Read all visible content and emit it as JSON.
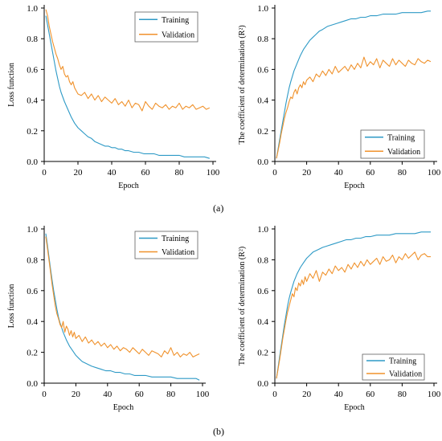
{
  "panel_labels": [
    "(a)",
    "(b)"
  ],
  "colors": {
    "training": "#2E9AC6",
    "validation": "#F0922C",
    "axis": "#000000",
    "legend_border": "#5f5f5f"
  },
  "chart_data": [
    {
      "type": "line",
      "panel": "(a)",
      "xlabel": "Epoch",
      "ylabel": "Loss function",
      "xlim": [
        0,
        100
      ],
      "ylim": [
        0,
        1
      ],
      "xticks": [
        "0",
        "20",
        "40",
        "60",
        "80",
        "100"
      ],
      "yticks": [
        "0.0",
        "0.2",
        "0.4",
        "0.6",
        "0.8",
        "1.0"
      ],
      "grid": false,
      "legend_position": "top-right",
      "series": [
        {
          "name": "Training",
          "color": "#2E9AC6",
          "x": [
            1,
            2,
            3,
            4,
            5,
            6,
            7,
            8,
            9,
            10,
            12,
            14,
            16,
            18,
            20,
            22,
            24,
            26,
            28,
            30,
            32,
            34,
            36,
            38,
            40,
            42,
            44,
            46,
            48,
            50,
            53,
            56,
            59,
            62,
            65,
            68,
            71,
            74,
            77,
            80,
            83,
            86,
            89,
            92,
            95,
            98
          ],
          "y": [
            0.95,
            0.89,
            0.83,
            0.77,
            0.71,
            0.65,
            0.59,
            0.54,
            0.49,
            0.45,
            0.39,
            0.34,
            0.29,
            0.25,
            0.22,
            0.2,
            0.18,
            0.16,
            0.15,
            0.13,
            0.12,
            0.11,
            0.1,
            0.1,
            0.09,
            0.09,
            0.08,
            0.08,
            0.07,
            0.07,
            0.06,
            0.06,
            0.05,
            0.05,
            0.05,
            0.04,
            0.04,
            0.04,
            0.04,
            0.04,
            0.03,
            0.03,
            0.03,
            0.03,
            0.03,
            0.02
          ]
        },
        {
          "name": "Validation",
          "color": "#F0922C",
          "x": [
            1,
            2,
            3,
            4,
            5,
            6,
            7,
            8,
            9,
            10,
            11,
            12,
            13,
            14,
            15,
            16,
            17,
            18,
            19,
            20,
            22,
            24,
            26,
            28,
            30,
            32,
            34,
            36,
            38,
            40,
            42,
            44,
            46,
            48,
            50,
            52,
            54,
            56,
            58,
            60,
            62,
            64,
            66,
            68,
            70,
            72,
            74,
            76,
            78,
            80,
            82,
            84,
            86,
            88,
            90,
            92,
            94,
            96,
            98
          ],
          "y": [
            0.99,
            0.95,
            0.88,
            0.83,
            0.78,
            0.74,
            0.7,
            0.67,
            0.63,
            0.6,
            0.62,
            0.57,
            0.55,
            0.56,
            0.52,
            0.5,
            0.52,
            0.48,
            0.46,
            0.44,
            0.43,
            0.45,
            0.41,
            0.44,
            0.4,
            0.43,
            0.39,
            0.42,
            0.4,
            0.38,
            0.41,
            0.37,
            0.39,
            0.36,
            0.4,
            0.35,
            0.38,
            0.37,
            0.33,
            0.39,
            0.36,
            0.34,
            0.38,
            0.36,
            0.35,
            0.37,
            0.34,
            0.36,
            0.35,
            0.38,
            0.34,
            0.36,
            0.35,
            0.37,
            0.34,
            0.35,
            0.36,
            0.34,
            0.35
          ]
        }
      ]
    },
    {
      "type": "line",
      "panel": "(a)",
      "xlabel": "Epoch",
      "ylabel": "The coefficient of determination (R²)",
      "xlim": [
        0,
        100
      ],
      "ylim": [
        0,
        1
      ],
      "xticks": [
        "0",
        "20",
        "40",
        "60",
        "80",
        "100"
      ],
      "yticks": [
        "0.0",
        "0.2",
        "0.4",
        "0.6",
        "0.8",
        "1.0"
      ],
      "grid": false,
      "legend_position": "bottom-right",
      "series": [
        {
          "name": "Training",
          "color": "#2E9AC6",
          "x": [
            1,
            2,
            3,
            4,
            5,
            6,
            7,
            8,
            9,
            10,
            12,
            14,
            16,
            18,
            20,
            22,
            24,
            26,
            28,
            30,
            33,
            36,
            39,
            42,
            45,
            48,
            51,
            54,
            57,
            60,
            64,
            68,
            72,
            76,
            80,
            84,
            88,
            92,
            96,
            98
          ],
          "y": [
            0.02,
            0.08,
            0.14,
            0.2,
            0.26,
            0.32,
            0.38,
            0.43,
            0.48,
            0.52,
            0.59,
            0.64,
            0.69,
            0.73,
            0.76,
            0.79,
            0.81,
            0.83,
            0.85,
            0.86,
            0.88,
            0.89,
            0.9,
            0.91,
            0.92,
            0.93,
            0.93,
            0.94,
            0.94,
            0.95,
            0.95,
            0.96,
            0.96,
            0.96,
            0.97,
            0.97,
            0.97,
            0.97,
            0.98,
            0.98
          ]
        },
        {
          "name": "Validation",
          "color": "#F0922C",
          "x": [
            1,
            2,
            3,
            4,
            5,
            6,
            7,
            8,
            9,
            10,
            11,
            12,
            13,
            14,
            15,
            16,
            17,
            18,
            19,
            20,
            22,
            24,
            26,
            28,
            30,
            32,
            34,
            36,
            38,
            40,
            42,
            44,
            46,
            48,
            50,
            52,
            54,
            56,
            58,
            60,
            62,
            64,
            66,
            68,
            70,
            72,
            74,
            76,
            78,
            80,
            82,
            84,
            86,
            88,
            90,
            92,
            94,
            96,
            98
          ],
          "y": [
            0.02,
            0.07,
            0.12,
            0.18,
            0.23,
            0.28,
            0.32,
            0.35,
            0.39,
            0.42,
            0.41,
            0.45,
            0.47,
            0.44,
            0.48,
            0.5,
            0.48,
            0.52,
            0.5,
            0.53,
            0.55,
            0.52,
            0.57,
            0.55,
            0.59,
            0.56,
            0.6,
            0.57,
            0.62,
            0.58,
            0.6,
            0.62,
            0.59,
            0.63,
            0.6,
            0.64,
            0.61,
            0.68,
            0.62,
            0.65,
            0.63,
            0.67,
            0.61,
            0.66,
            0.64,
            0.62,
            0.67,
            0.63,
            0.66,
            0.64,
            0.62,
            0.66,
            0.64,
            0.63,
            0.67,
            0.65,
            0.64,
            0.66,
            0.65
          ]
        }
      ]
    },
    {
      "type": "line",
      "panel": "(b)",
      "xlabel": "Epoch",
      "ylabel": "Loss function",
      "xlim": [
        0,
        100
      ],
      "ylim": [
        0,
        1
      ],
      "xticks": [
        "0",
        "20",
        "40",
        "60",
        "80",
        "100"
      ],
      "yticks": [
        "0.0",
        "0.2",
        "0.4",
        "0.6",
        "0.8",
        "1.0"
      ],
      "grid": false,
      "legend_position": "top-right",
      "series": [
        {
          "name": "Training",
          "color": "#2E9AC6",
          "x": [
            1,
            2,
            3,
            4,
            5,
            6,
            7,
            8,
            9,
            10,
            12,
            14,
            16,
            18,
            20,
            22,
            24,
            26,
            28,
            30,
            33,
            36,
            39,
            42,
            45,
            48,
            51,
            54,
            57,
            60,
            64,
            68,
            72,
            76,
            80,
            84,
            88,
            92,
            96,
            98
          ],
          "y": [
            0.97,
            0.9,
            0.82,
            0.74,
            0.67,
            0.6,
            0.54,
            0.48,
            0.43,
            0.39,
            0.33,
            0.28,
            0.24,
            0.21,
            0.18,
            0.16,
            0.14,
            0.13,
            0.12,
            0.11,
            0.1,
            0.09,
            0.08,
            0.08,
            0.07,
            0.07,
            0.06,
            0.06,
            0.05,
            0.05,
            0.05,
            0.04,
            0.04,
            0.04,
            0.04,
            0.03,
            0.03,
            0.03,
            0.03,
            0.02
          ]
        },
        {
          "name": "Validation",
          "color": "#F0922C",
          "x": [
            1,
            2,
            3,
            4,
            5,
            6,
            7,
            8,
            9,
            10,
            11,
            12,
            13,
            14,
            15,
            16,
            17,
            18,
            19,
            20,
            22,
            24,
            26,
            28,
            30,
            32,
            34,
            36,
            38,
            40,
            42,
            44,
            46,
            48,
            50,
            52,
            54,
            56,
            58,
            60,
            62,
            64,
            66,
            68,
            70,
            72,
            74,
            76,
            78,
            80,
            82,
            84,
            86,
            88,
            90,
            92,
            94,
            96,
            98
          ],
          "y": [
            0.95,
            0.88,
            0.8,
            0.72,
            0.64,
            0.57,
            0.5,
            0.45,
            0.42,
            0.38,
            0.36,
            0.4,
            0.33,
            0.37,
            0.35,
            0.31,
            0.34,
            0.3,
            0.33,
            0.29,
            0.31,
            0.27,
            0.3,
            0.26,
            0.28,
            0.25,
            0.27,
            0.24,
            0.26,
            0.23,
            0.25,
            0.22,
            0.24,
            0.21,
            0.23,
            0.22,
            0.2,
            0.23,
            0.21,
            0.19,
            0.22,
            0.2,
            0.18,
            0.21,
            0.2,
            0.19,
            0.17,
            0.21,
            0.19,
            0.23,
            0.18,
            0.2,
            0.17,
            0.19,
            0.18,
            0.2,
            0.17,
            0.18,
            0.19
          ]
        }
      ]
    },
    {
      "type": "line",
      "panel": "(b)",
      "xlabel": "Epoch",
      "ylabel": "The coefficient of determination (R²)",
      "xlim": [
        0,
        100
      ],
      "ylim": [
        0,
        1
      ],
      "xticks": [
        "0",
        "20",
        "40",
        "60",
        "80",
        "100"
      ],
      "yticks": [
        "0.0",
        "0.2",
        "0.4",
        "0.6",
        "0.8",
        "1.0"
      ],
      "grid": false,
      "legend_position": "bottom-right",
      "series": [
        {
          "name": "Training",
          "color": "#2E9AC6",
          "x": [
            1,
            2,
            3,
            4,
            5,
            6,
            7,
            8,
            9,
            10,
            12,
            14,
            16,
            18,
            20,
            22,
            24,
            26,
            28,
            30,
            33,
            36,
            39,
            42,
            45,
            48,
            51,
            54,
            57,
            60,
            64,
            68,
            72,
            76,
            80,
            84,
            88,
            92,
            96,
            98
          ],
          "y": [
            0.03,
            0.1,
            0.17,
            0.24,
            0.31,
            0.38,
            0.44,
            0.5,
            0.55,
            0.59,
            0.66,
            0.71,
            0.75,
            0.78,
            0.81,
            0.83,
            0.85,
            0.86,
            0.87,
            0.88,
            0.89,
            0.9,
            0.91,
            0.92,
            0.93,
            0.93,
            0.94,
            0.94,
            0.95,
            0.95,
            0.96,
            0.96,
            0.96,
            0.97,
            0.97,
            0.97,
            0.97,
            0.98,
            0.98,
            0.98
          ]
        },
        {
          "name": "Validation",
          "color": "#F0922C",
          "x": [
            1,
            2,
            3,
            4,
            5,
            6,
            7,
            8,
            9,
            10,
            11,
            12,
            13,
            14,
            15,
            16,
            17,
            18,
            19,
            20,
            22,
            24,
            26,
            28,
            30,
            32,
            34,
            36,
            38,
            40,
            42,
            44,
            46,
            48,
            50,
            52,
            54,
            56,
            58,
            60,
            62,
            64,
            66,
            68,
            70,
            72,
            74,
            76,
            78,
            80,
            82,
            84,
            86,
            88,
            90,
            92,
            94,
            96,
            98
          ],
          "y": [
            0.03,
            0.09,
            0.15,
            0.22,
            0.29,
            0.35,
            0.41,
            0.46,
            0.5,
            0.54,
            0.58,
            0.56,
            0.62,
            0.6,
            0.65,
            0.63,
            0.67,
            0.64,
            0.69,
            0.66,
            0.71,
            0.68,
            0.73,
            0.66,
            0.72,
            0.7,
            0.74,
            0.71,
            0.76,
            0.73,
            0.75,
            0.72,
            0.77,
            0.74,
            0.78,
            0.75,
            0.79,
            0.76,
            0.8,
            0.77,
            0.79,
            0.81,
            0.77,
            0.82,
            0.79,
            0.8,
            0.83,
            0.78,
            0.82,
            0.8,
            0.84,
            0.81,
            0.83,
            0.85,
            0.8,
            0.83,
            0.84,
            0.82,
            0.82
          ]
        }
      ]
    }
  ]
}
